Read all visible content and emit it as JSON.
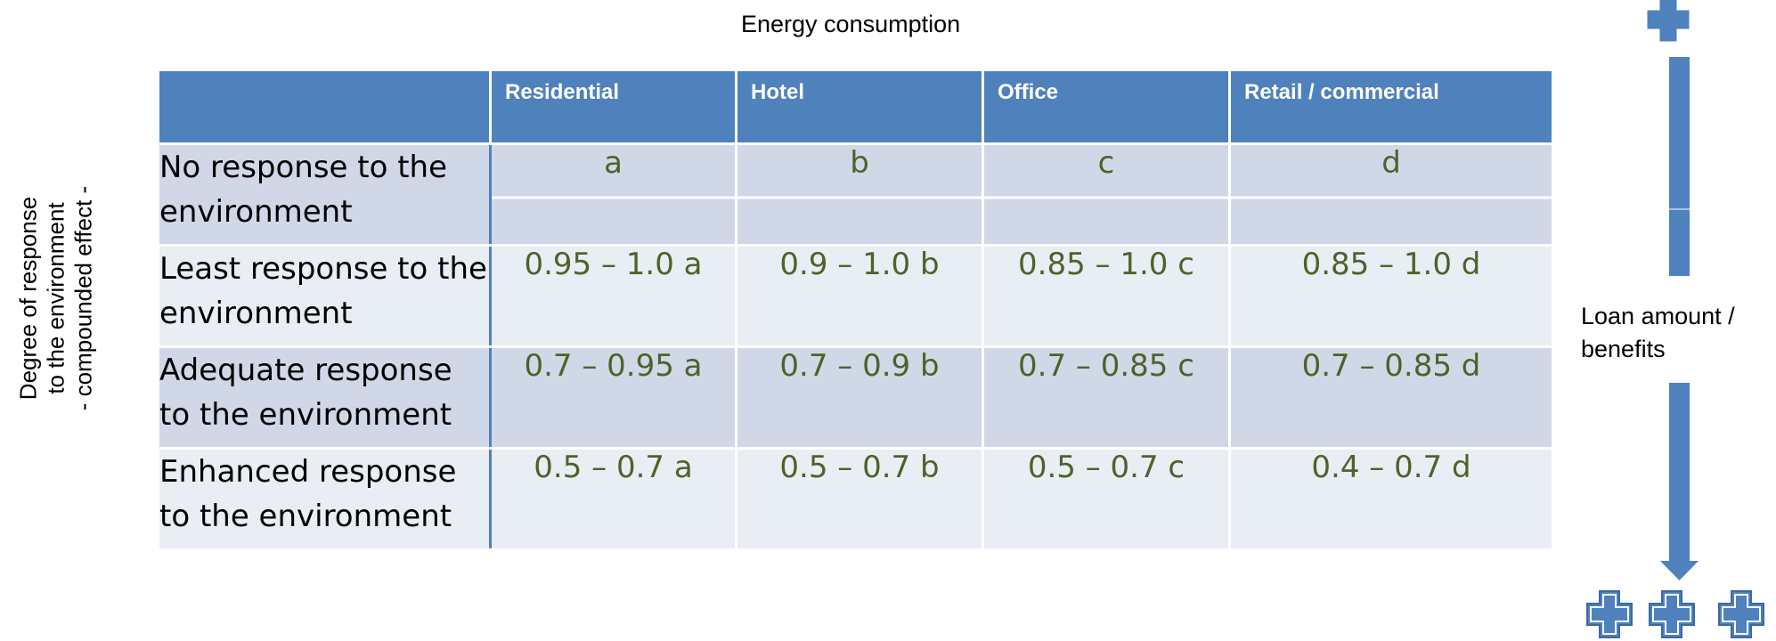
{
  "header": {
    "title": "Energy consumption"
  },
  "side_label": {
    "lines": [
      "Degree of response",
      "to the environment",
      "- compounded effect -"
    ]
  },
  "loan_label": {
    "line1": "Loan amount /",
    "line2": "benefits"
  },
  "table": {
    "columns": [
      "",
      "Residential",
      "Hotel",
      "Office",
      "Retail / commercial"
    ],
    "rows": [
      {
        "label": "No response to the environment",
        "values": [
          "a",
          "b",
          "c",
          "d"
        ]
      },
      {
        "label": "Least response to the environment",
        "values": [
          "0.95 – 1.0 a",
          "0.9 – 1.0 b",
          "0.85 – 1.0  c",
          "0.85 – 1.0 d"
        ]
      },
      {
        "label": "Adequate response to the environment",
        "values": [
          "0.7 – 0.95 a",
          "0.7 – 0.9 b",
          "0.7 – 0.85 c",
          "0.7 – 0.85 d"
        ]
      },
      {
        "label": "Enhanced response to the environment",
        "values": [
          "0.5 – 0.7 a",
          "0.5 – 0.7 b",
          "0.5 – 0.7 c",
          "0.4 – 0.7 d"
        ]
      }
    ]
  },
  "colors": {
    "header_bg": "#4f81bd",
    "row_dark": "#d0d8e8",
    "row_light": "#e9edf4",
    "value_text": "#4f6228",
    "arrow": "#4f81bd"
  },
  "icons": [
    "plus-icon",
    "down-arrow-icon"
  ]
}
